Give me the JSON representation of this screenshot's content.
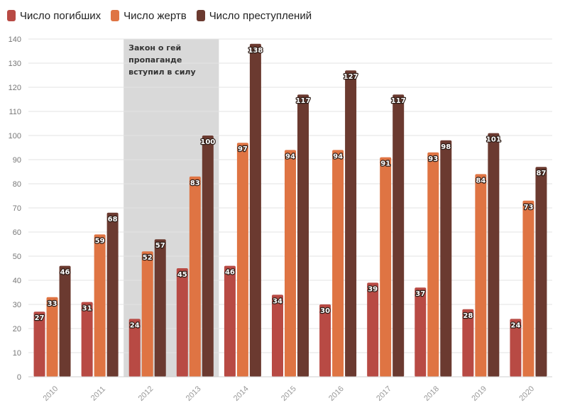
{
  "chart_data": {
    "type": "bar",
    "categories": [
      "2010",
      "2011",
      "2012",
      "2013",
      "2014",
      "2015",
      "2016",
      "2017",
      "2018",
      "2019",
      "2020"
    ],
    "series": [
      {
        "name": "Число погибших",
        "color": "#b84a44",
        "values": [
          27,
          31,
          24,
          45,
          46,
          34,
          30,
          39,
          37,
          28,
          24
        ]
      },
      {
        "name": "Число жертв",
        "color": "#df7443",
        "values": [
          33,
          59,
          52,
          83,
          97,
          94,
          94,
          91,
          93,
          84,
          73
        ]
      },
      {
        "name": "Число преступлений",
        "color": "#6b3a30",
        "values": [
          46,
          68,
          57,
          100,
          138,
          117,
          127,
          117,
          98,
          101,
          87
        ]
      }
    ],
    "ylim": [
      0,
      140
    ],
    "yticks": [
      0,
      10,
      20,
      30,
      40,
      50,
      60,
      70,
      80,
      90,
      100,
      110,
      120,
      130,
      140
    ],
    "grid": true,
    "legend_position": "top-left",
    "annotation": {
      "lines": [
        "Закон о гей",
        "пропаганде",
        "вступил в силу"
      ],
      "span": [
        "2012",
        "2013"
      ],
      "color": "#d9d9d9"
    }
  }
}
